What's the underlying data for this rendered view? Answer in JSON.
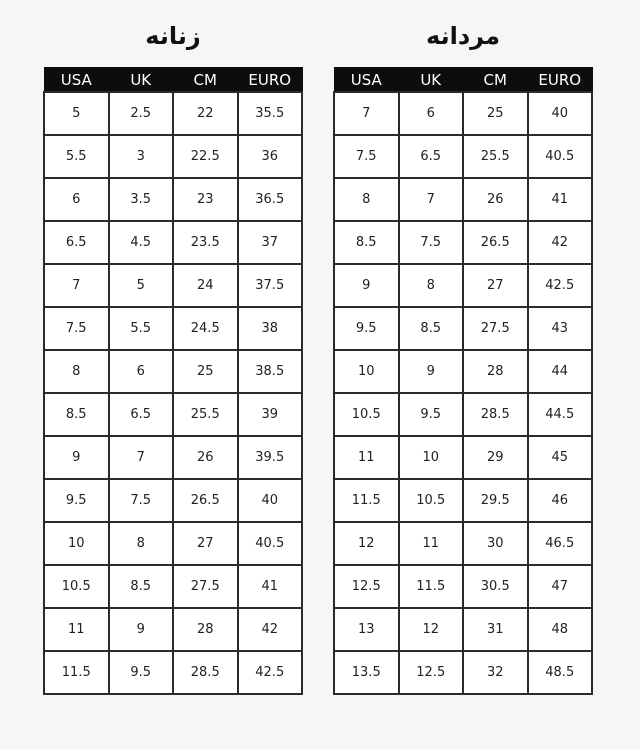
{
  "columns": [
    "USA",
    "UK",
    "CM",
    "EURO"
  ],
  "women": {
    "title": "زنانه",
    "rows": [
      [
        "5",
        "2.5",
        "22",
        "35.5"
      ],
      [
        "5.5",
        "3",
        "22.5",
        "36"
      ],
      [
        "6",
        "3.5",
        "23",
        "36.5"
      ],
      [
        "6.5",
        "4.5",
        "23.5",
        "37"
      ],
      [
        "7",
        "5",
        "24",
        "37.5"
      ],
      [
        "7.5",
        "5.5",
        "24.5",
        "38"
      ],
      [
        "8",
        "6",
        "25",
        "38.5"
      ],
      [
        "8.5",
        "6.5",
        "25.5",
        "39"
      ],
      [
        "9",
        "7",
        "26",
        "39.5"
      ],
      [
        "9.5",
        "7.5",
        "26.5",
        "40"
      ],
      [
        "10",
        "8",
        "27",
        "40.5"
      ],
      [
        "10.5",
        "8.5",
        "27.5",
        "41"
      ],
      [
        "11",
        "9",
        "28",
        "42"
      ],
      [
        "11.5",
        "9.5",
        "28.5",
        "42.5"
      ]
    ]
  },
  "men": {
    "title": "مردانه",
    "rows": [
      [
        "7",
        "6",
        "25",
        "40"
      ],
      [
        "7.5",
        "6.5",
        "25.5",
        "40.5"
      ],
      [
        "8",
        "7",
        "26",
        "41"
      ],
      [
        "8.5",
        "7.5",
        "26.5",
        "42"
      ],
      [
        "9",
        "8",
        "27",
        "42.5"
      ],
      [
        "9.5",
        "8.5",
        "27.5",
        "43"
      ],
      [
        "10",
        "9",
        "28",
        "44"
      ],
      [
        "10.5",
        "9.5",
        "28.5",
        "44.5"
      ],
      [
        "11",
        "10",
        "29",
        "45"
      ],
      [
        "11.5",
        "10.5",
        "29.5",
        "46"
      ],
      [
        "12",
        "11",
        "30",
        "46.5"
      ],
      [
        "12.5",
        "11.5",
        "30.5",
        "47"
      ],
      [
        "13",
        "12",
        "31",
        "48"
      ],
      [
        "13.5",
        "12.5",
        "32",
        "48.5"
      ]
    ]
  }
}
